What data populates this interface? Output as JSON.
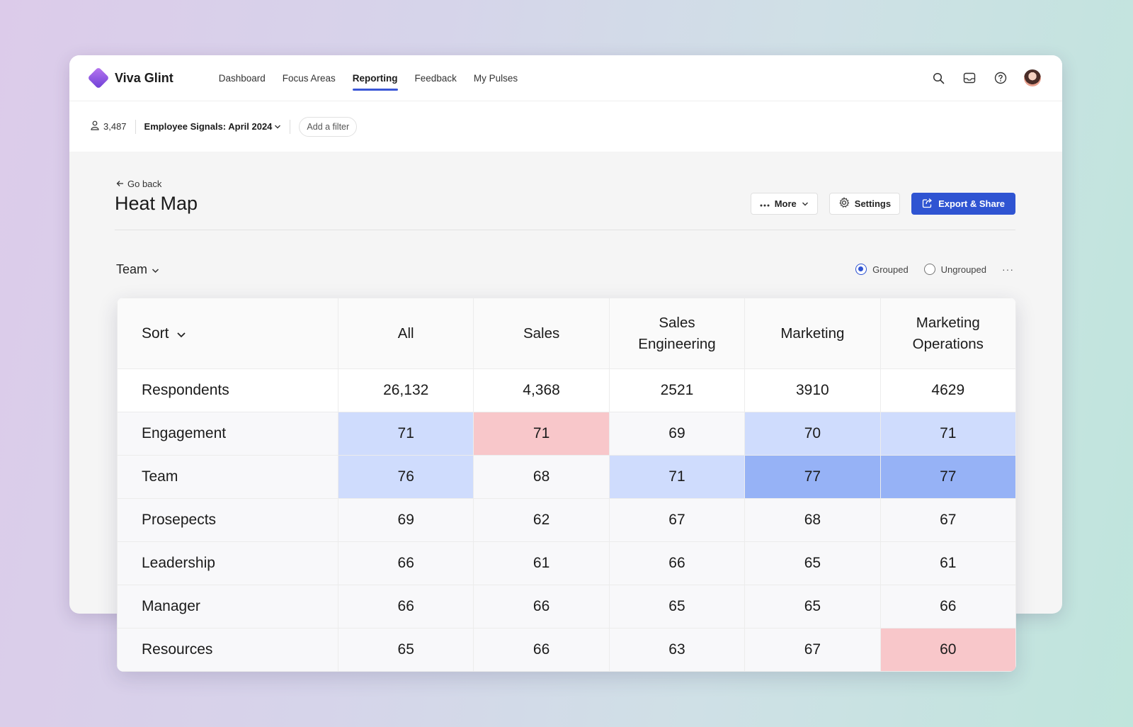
{
  "app": {
    "name": "Viva Glint"
  },
  "nav": {
    "items": [
      {
        "label": "Dashboard"
      },
      {
        "label": "Focus Areas"
      },
      {
        "label": "Reporting"
      },
      {
        "label": "Feedback"
      },
      {
        "label": "My Pulses"
      }
    ],
    "active": "Reporting"
  },
  "filter_bar": {
    "respondent_count": "3,487",
    "survey": "Employee Signals: April 2024",
    "add_filter": "Add a filter"
  },
  "page": {
    "go_back": "Go back",
    "title": "Heat Map",
    "more_label": "More",
    "settings_label": "Settings",
    "export_label": "Export & Share",
    "group_by": "Team",
    "grouped_label": "Grouped",
    "ungrouped_label": "Ungrouped",
    "view_mode": "Grouped"
  },
  "colors": {
    "accent": "#2f54d2",
    "favorable_light": "#cfdcfd",
    "favorable_strong": "#96b2f6",
    "unfavorable": "#f8c7ca"
  },
  "heatmap": {
    "sort_label": "Sort",
    "columns": [
      "All",
      "Sales",
      "Sales Engineering",
      "Marketing",
      "Marketing Operations"
    ],
    "column_lines": [
      [
        "All"
      ],
      [
        "Sales"
      ],
      [
        "Sales",
        "Engineering"
      ],
      [
        "Marketing"
      ],
      [
        "Marketing",
        "Operations"
      ]
    ],
    "rows": [
      {
        "label": "Respondents",
        "values": [
          "26,132",
          "4,368",
          "2521",
          "3910",
          "4629"
        ],
        "levels": [
          "",
          "",
          "",
          "",
          ""
        ]
      },
      {
        "label": "Engagement",
        "values": [
          "71",
          "71",
          "69",
          "70",
          "71"
        ],
        "levels": [
          "hi1",
          "lo",
          "",
          "hi1",
          "hi1"
        ]
      },
      {
        "label": "Team",
        "values": [
          "76",
          "68",
          "71",
          "77",
          "77"
        ],
        "levels": [
          "hi1",
          "",
          "hi1",
          "hi2",
          "hi2"
        ]
      },
      {
        "label": "Prosepects",
        "values": [
          "69",
          "62",
          "67",
          "68",
          "67"
        ],
        "levels": [
          "",
          "",
          "",
          "",
          ""
        ]
      },
      {
        "label": "Leadership",
        "values": [
          "66",
          "61",
          "66",
          "65",
          "61"
        ],
        "levels": [
          "",
          "",
          "",
          "",
          ""
        ]
      },
      {
        "label": "Manager",
        "values": [
          "66",
          "66",
          "65",
          "65",
          "66"
        ],
        "levels": [
          "",
          "",
          "",
          "",
          ""
        ]
      },
      {
        "label": "Resources",
        "values": [
          "65",
          "66",
          "63",
          "67",
          "60"
        ],
        "levels": [
          "",
          "",
          "",
          "",
          "lo"
        ]
      }
    ]
  }
}
